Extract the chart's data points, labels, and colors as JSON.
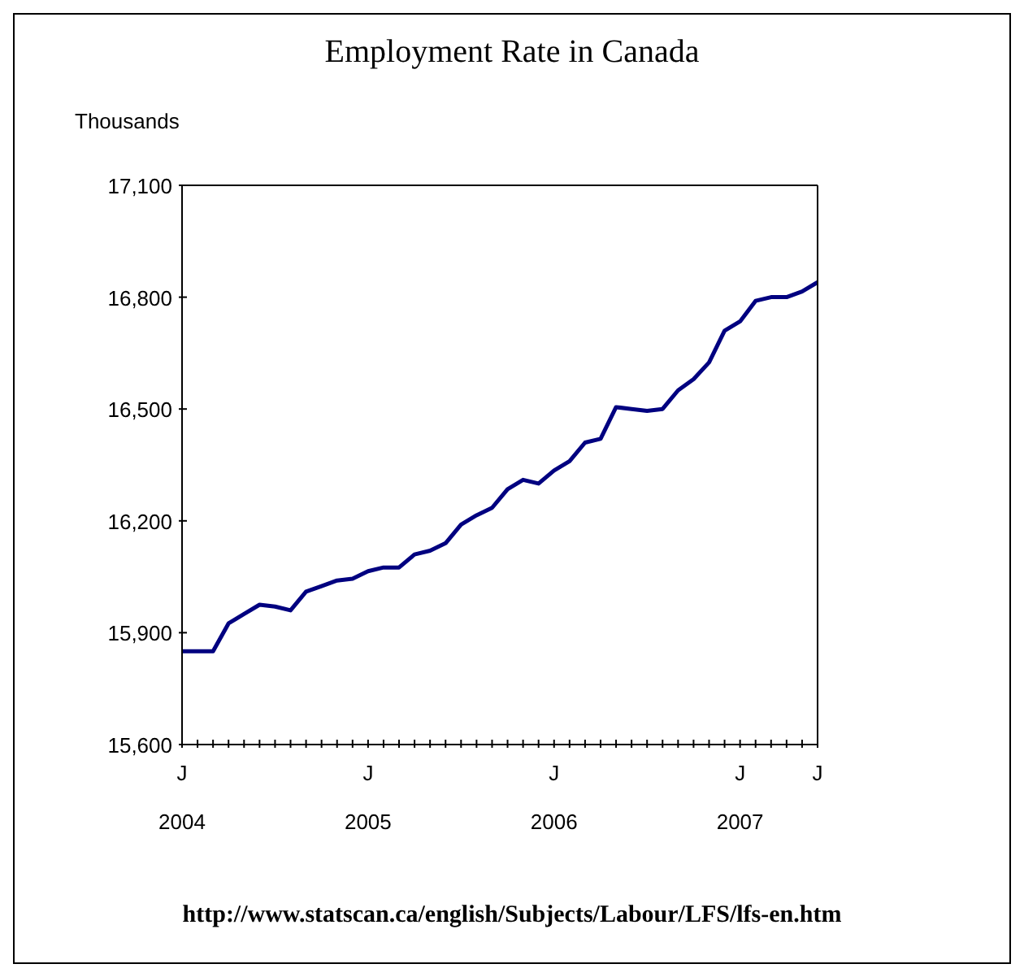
{
  "chart_data": {
    "type": "line",
    "title": "Employment Rate in Canada",
    "ylabel": "Thousands",
    "x": [
      "2004-01",
      "2004-02",
      "2004-03",
      "2004-04",
      "2004-05",
      "2004-06",
      "2004-07",
      "2004-08",
      "2004-09",
      "2004-10",
      "2004-11",
      "2004-12",
      "2005-01",
      "2005-02",
      "2005-03",
      "2005-04",
      "2005-05",
      "2005-06",
      "2005-07",
      "2005-08",
      "2005-09",
      "2005-10",
      "2005-11",
      "2005-12",
      "2006-01",
      "2006-02",
      "2006-03",
      "2006-04",
      "2006-05",
      "2006-06",
      "2006-07",
      "2006-08",
      "2006-09",
      "2006-10",
      "2006-11",
      "2006-12",
      "2007-01",
      "2007-02",
      "2007-03",
      "2007-04",
      "2007-05",
      "2007-06"
    ],
    "series": [
      {
        "color": "#000080",
        "values": [
          15850,
          15850,
          15850,
          15925,
          15950,
          15975,
          15970,
          15960,
          16010,
          16025,
          16040,
          16045,
          16065,
          16075,
          16075,
          16110,
          16120,
          16140,
          16190,
          16215,
          16235,
          16285,
          16310,
          16300,
          16335,
          16360,
          16410,
          16420,
          16505,
          16500,
          16495,
          16500,
          16550,
          16580,
          16625,
          16710,
          16735,
          16790,
          16800,
          16800,
          16815,
          16840
        ]
      }
    ],
    "xlim": [
      "2004-01",
      "2007-06"
    ],
    "xticks": [
      {
        "value": "2004-01",
        "label": "J\n2004"
      },
      {
        "value": "2004-02",
        "label": null
      },
      {
        "value": "2004-03",
        "label": null
      },
      {
        "value": "2004-04",
        "label": null
      },
      {
        "value": "2004-05",
        "label": null
      },
      {
        "value": "2004-06",
        "label": null
      },
      {
        "value": "2004-07",
        "label": null
      },
      {
        "value": "2004-08",
        "label": null
      },
      {
        "value": "2004-09",
        "label": null
      },
      {
        "value": "2004-10",
        "label": null
      },
      {
        "value": "2004-11",
        "label": null
      },
      {
        "value": "2004-12",
        "label": null
      },
      {
        "value": "2005-01",
        "label": "J\n2005"
      },
      {
        "value": "2005-02",
        "label": null
      },
      {
        "value": "2005-03",
        "label": null
      },
      {
        "value": "2005-04",
        "label": null
      },
      {
        "value": "2005-05",
        "label": null
      },
      {
        "value": "2005-06",
        "label": null
      },
      {
        "value": "2005-07",
        "label": null
      },
      {
        "value": "2005-08",
        "label": null
      },
      {
        "value": "2005-09",
        "label": null
      },
      {
        "value": "2005-10",
        "label": null
      },
      {
        "value": "2005-11",
        "label": null
      },
      {
        "value": "2005-12",
        "label": null
      },
      {
        "value": "2006-01",
        "label": "J\n2006"
      },
      {
        "value": "2006-02",
        "label": null
      },
      {
        "value": "2006-03",
        "label": null
      },
      {
        "value": "2006-04",
        "label": null
      },
      {
        "value": "2006-05",
        "label": null
      },
      {
        "value": "2006-06",
        "label": null
      },
      {
        "value": "2006-07",
        "label": null
      },
      {
        "value": "2006-08",
        "label": null
      },
      {
        "value": "2006-09",
        "label": null
      },
      {
        "value": "2006-10",
        "label": null
      },
      {
        "value": "2006-11",
        "label": null
      },
      {
        "value": "2006-12",
        "label": null
      },
      {
        "value": "2007-01",
        "label": "J\n2007"
      },
      {
        "value": "2007-02",
        "label": null
      },
      {
        "value": "2007-03",
        "label": null
      },
      {
        "value": "2007-04",
        "label": null
      },
      {
        "value": "2007-05",
        "label": null
      },
      {
        "value": "2007-06",
        "label": "J"
      }
    ],
    "ylim": [
      15600,
      17100
    ],
    "yticks": [
      {
        "value": 15600,
        "label": "15,600"
      },
      {
        "value": 15900,
        "label": "15,900"
      },
      {
        "value": 16200,
        "label": "16,200"
      },
      {
        "value": 16500,
        "label": "16,500"
      },
      {
        "value": 16800,
        "label": "16,800"
      },
      {
        "value": 17100,
        "label": "17,100"
      }
    ],
    "grid": false,
    "legend": false,
    "marker": "none",
    "line_style": "solid",
    "annotations": [
      "http://www.statscan.ca/english/Subjects/Labour/LFS/lfs-en.htm"
    ]
  }
}
